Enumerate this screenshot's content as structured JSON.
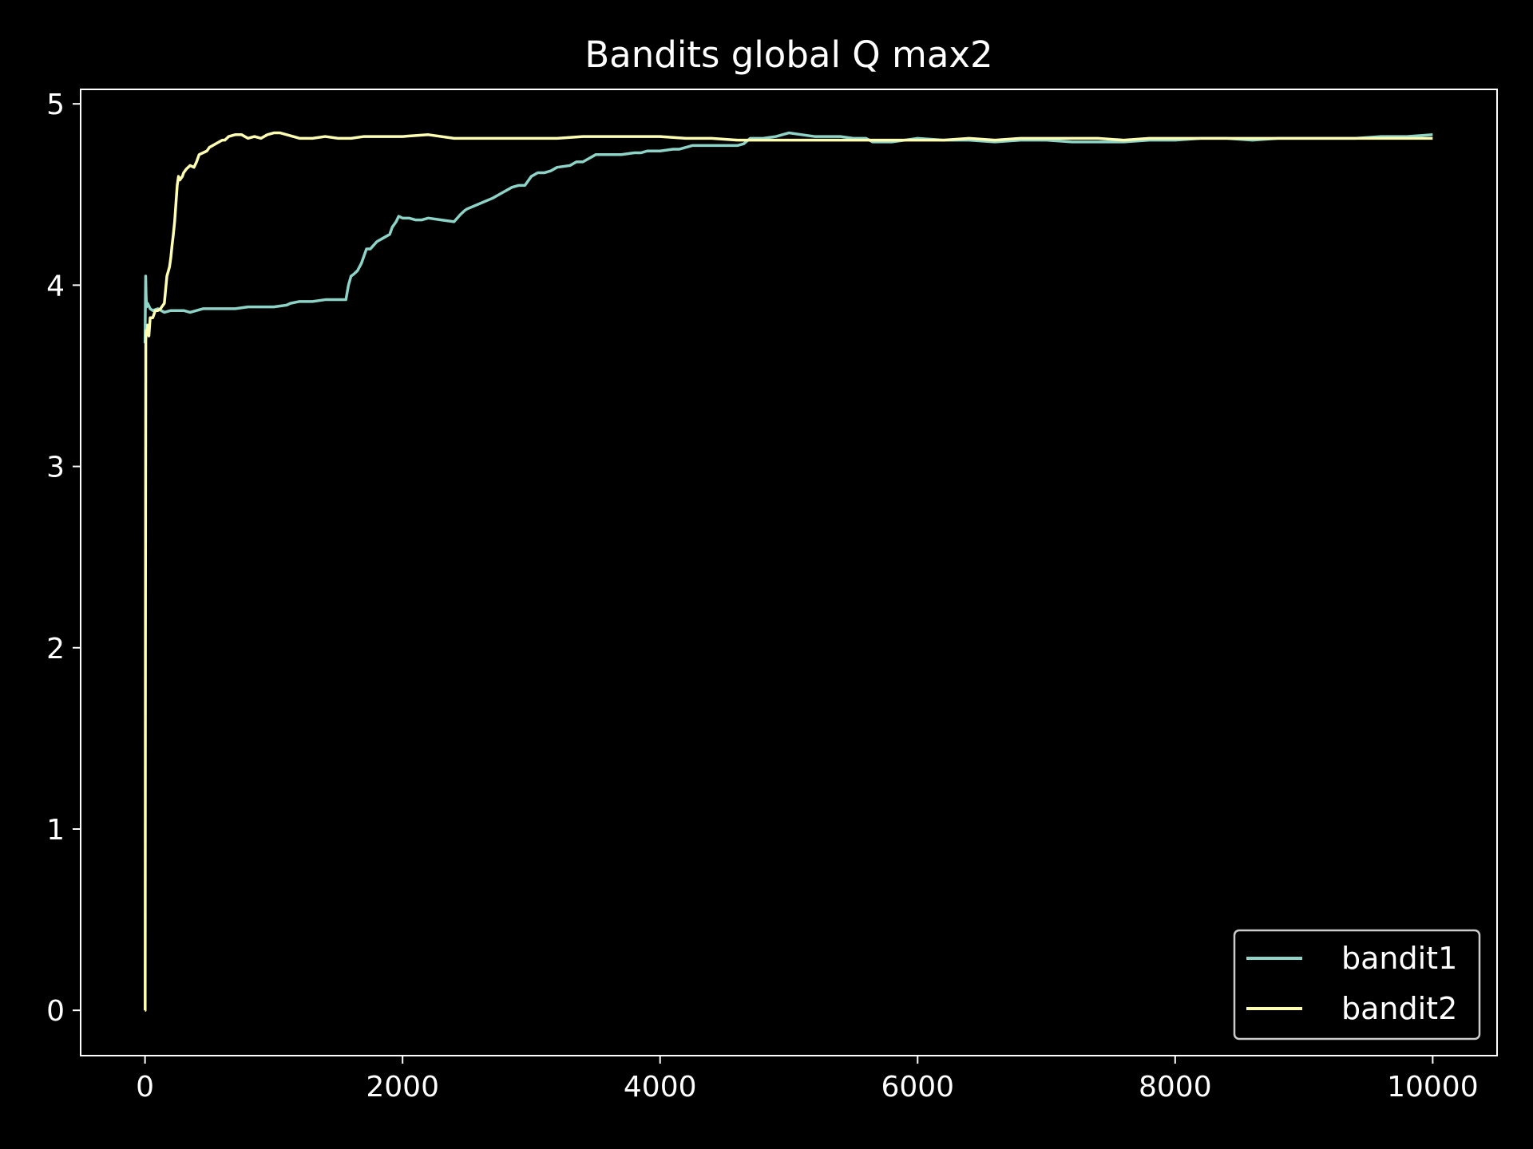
{
  "chart_data": {
    "type": "line",
    "title": "Bandits global Q max2",
    "xlabel": "",
    "ylabel": "",
    "xlim": [
      -500,
      10500
    ],
    "ylim": [
      -0.25,
      5.08
    ],
    "x_ticks": [
      0,
      2000,
      4000,
      6000,
      8000,
      10000
    ],
    "x_tick_labels": [
      "0",
      "2000",
      "4000",
      "6000",
      "8000",
      "10000"
    ],
    "y_ticks": [
      0,
      1,
      2,
      3,
      4,
      5
    ],
    "y_tick_labels": [
      "0",
      "1",
      "2",
      "3",
      "4",
      "5"
    ],
    "grid": false,
    "legend_position": "lower-right",
    "background": "#000000",
    "series": [
      {
        "name": "bandit1",
        "color": "#8dd3c7",
        "x": [
          0,
          5,
          8,
          12,
          20,
          40,
          60,
          100,
          150,
          200,
          300,
          350,
          400,
          450,
          500,
          600,
          700,
          800,
          900,
          1000,
          1100,
          1130,
          1200,
          1300,
          1400,
          1500,
          1560,
          1580,
          1600,
          1620,
          1650,
          1680,
          1700,
          1720,
          1750,
          1800,
          1850,
          1900,
          1920,
          1950,
          1970,
          2000,
          2050,
          2100,
          2150,
          2200,
          2300,
          2400,
          2450,
          2480,
          2500,
          2600,
          2700,
          2750,
          2800,
          2850,
          2900,
          2950,
          3000,
          3050,
          3100,
          3150,
          3200,
          3300,
          3350,
          3400,
          3450,
          3500,
          3550,
          3600,
          3700,
          3800,
          3850,
          3900,
          4000,
          4100,
          4150,
          4200,
          4250,
          4300,
          4400,
          4500,
          4600,
          4650,
          4700,
          4800,
          4900,
          4950,
          5000,
          5100,
          5200,
          5300,
          5400,
          5500,
          5600,
          5650,
          5700,
          5800,
          5900,
          6000,
          6200,
          6400,
          6600,
          6800,
          7000,
          7200,
          7400,
          7600,
          7800,
          8000,
          8200,
          8400,
          8600,
          8800,
          9000,
          9200,
          9400,
          9600,
          9800,
          10000
        ],
        "values": [
          3.68,
          4.05,
          3.95,
          3.88,
          3.9,
          3.87,
          3.86,
          3.87,
          3.85,
          3.86,
          3.86,
          3.85,
          3.86,
          3.87,
          3.87,
          3.87,
          3.87,
          3.88,
          3.88,
          3.88,
          3.89,
          3.9,
          3.91,
          3.91,
          3.92,
          3.92,
          3.92,
          4.0,
          4.05,
          4.06,
          4.08,
          4.12,
          4.16,
          4.2,
          4.2,
          4.24,
          4.26,
          4.28,
          4.32,
          4.35,
          4.38,
          4.37,
          4.37,
          4.36,
          4.36,
          4.37,
          4.36,
          4.35,
          4.39,
          4.41,
          4.42,
          4.45,
          4.48,
          4.5,
          4.52,
          4.54,
          4.55,
          4.55,
          4.6,
          4.62,
          4.62,
          4.63,
          4.65,
          4.66,
          4.68,
          4.68,
          4.7,
          4.72,
          4.72,
          4.72,
          4.72,
          4.73,
          4.73,
          4.74,
          4.74,
          4.75,
          4.75,
          4.76,
          4.77,
          4.77,
          4.77,
          4.77,
          4.77,
          4.78,
          4.81,
          4.81,
          4.82,
          4.83,
          4.84,
          4.83,
          4.82,
          4.82,
          4.82,
          4.81,
          4.81,
          4.79,
          4.79,
          4.79,
          4.8,
          4.81,
          4.8,
          4.8,
          4.79,
          4.8,
          4.8,
          4.79,
          4.79,
          4.79,
          4.8,
          4.8,
          4.81,
          4.81,
          4.8,
          4.81,
          4.81,
          4.81,
          4.81,
          4.82,
          4.82,
          4.83
        ]
      },
      {
        "name": "bandit2",
        "color": "#ffffb3",
        "x": [
          0,
          1,
          3,
          6,
          10,
          15,
          20,
          30,
          40,
          60,
          80,
          100,
          120,
          150,
          170,
          190,
          200,
          210,
          220,
          230,
          240,
          250,
          260,
          270,
          290,
          300,
          320,
          350,
          380,
          400,
          420,
          450,
          480,
          500,
          550,
          600,
          620,
          650,
          700,
          750,
          800,
          850,
          900,
          950,
          1000,
          1050,
          1100,
          1150,
          1200,
          1300,
          1400,
          1500,
          1600,
          1700,
          1800,
          1900,
          2000,
          2200,
          2400,
          2600,
          2800,
          3000,
          3200,
          3400,
          3600,
          3800,
          4000,
          4200,
          4400,
          4600,
          4800,
          5000,
          5200,
          5400,
          5600,
          5800,
          6000,
          6200,
          6400,
          6600,
          6800,
          7000,
          7200,
          7400,
          7600,
          7800,
          8000,
          8200,
          8400,
          8600,
          8800,
          9000,
          9200,
          9400,
          9600,
          9800,
          10000
        ],
        "values": [
          0.0,
          0.0,
          2.0,
          3.7,
          3.75,
          3.73,
          3.78,
          3.72,
          3.82,
          3.82,
          3.86,
          3.86,
          3.87,
          3.9,
          4.05,
          4.1,
          4.15,
          4.22,
          4.28,
          4.35,
          4.45,
          4.55,
          4.6,
          4.58,
          4.6,
          4.62,
          4.64,
          4.66,
          4.65,
          4.68,
          4.72,
          4.73,
          4.74,
          4.76,
          4.78,
          4.8,
          4.8,
          4.82,
          4.83,
          4.83,
          4.81,
          4.82,
          4.81,
          4.83,
          4.84,
          4.84,
          4.83,
          4.82,
          4.81,
          4.81,
          4.82,
          4.81,
          4.81,
          4.82,
          4.82,
          4.82,
          4.82,
          4.83,
          4.81,
          4.81,
          4.81,
          4.81,
          4.81,
          4.82,
          4.82,
          4.82,
          4.82,
          4.81,
          4.81,
          4.8,
          4.8,
          4.8,
          4.8,
          4.8,
          4.8,
          4.8,
          4.8,
          4.8,
          4.81,
          4.8,
          4.81,
          4.81,
          4.81,
          4.81,
          4.8,
          4.81,
          4.81,
          4.81,
          4.81,
          4.81,
          4.81,
          4.81,
          4.81,
          4.81,
          4.81,
          4.81,
          4.81
        ]
      }
    ]
  }
}
